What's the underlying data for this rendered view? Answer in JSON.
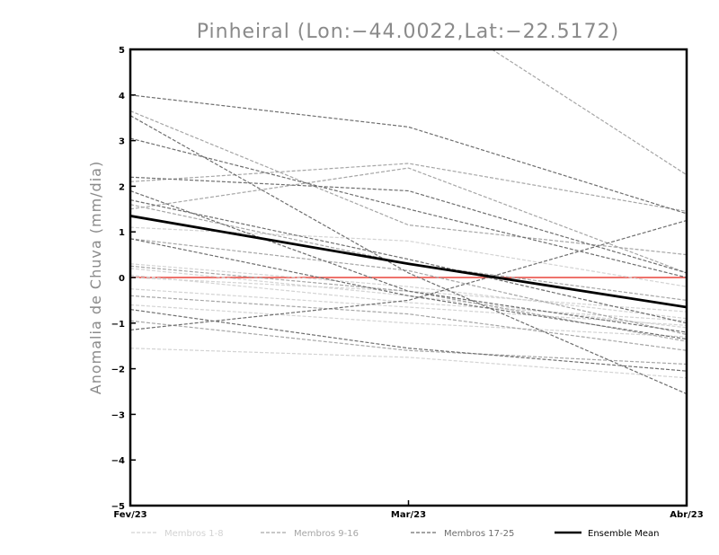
{
  "chart_data": {
    "type": "line",
    "title": "Pinheiral (Lon:−44.0022,Lat:−22.5172)",
    "ylabel": "Anomalia de Chuva (mm/dia)",
    "xlabel": "",
    "x": [
      "Fev/23",
      "Mar/23",
      "Abr/23"
    ],
    "ylim": [
      -5,
      5
    ],
    "yticks": [
      5,
      4,
      3,
      2,
      1,
      0,
      -1,
      -2,
      -3,
      -4,
      -5
    ],
    "ytick_labels": [
      "5",
      "4",
      "3",
      "2",
      "1",
      "0",
      "−1",
      "−2",
      "−3",
      "−4",
      "−5"
    ],
    "zero_line_color": "#e8453c",
    "legend_position": "bottom",
    "groups": [
      {
        "name": "Membros 1-8",
        "color": "#d3d3d3"
      },
      {
        "name": "Membros 9-16",
        "color": "#a6a6a6"
      },
      {
        "name": "Membros 17-25",
        "color": "#6e6e6e"
      }
    ],
    "ensemble_mean": {
      "name": "Ensemble Mean",
      "color": "#000000",
      "values": [
        1.35,
        0.3,
        -0.65
      ]
    },
    "series": [
      {
        "group": 0,
        "values": [
          0.3,
          -0.2,
          -0.9
        ]
      },
      {
        "group": 0,
        "values": [
          0.2,
          -0.4,
          -1.1
        ]
      },
      {
        "group": 0,
        "values": [
          -0.6,
          -1.0,
          -1.3
        ]
      },
      {
        "group": 0,
        "values": [
          -1.55,
          -1.75,
          -2.2
        ]
      },
      {
        "group": 0,
        "values": [
          1.1,
          0.8,
          -0.2
        ]
      },
      {
        "group": 0,
        "values": [
          0.05,
          -0.55,
          -0.95
        ]
      },
      {
        "group": 0,
        "values": [
          -0.25,
          -0.65,
          -1.05
        ]
      },
      {
        "group": 0,
        "values": [
          0.0,
          -0.3,
          -0.75
        ]
      },
      {
        "group": 1,
        "values": [
          2.1,
          2.5,
          1.45
        ]
      },
      {
        "group": 1,
        "values": [
          3.65,
          1.15,
          0.5
        ]
      },
      {
        "group": 1,
        "values": [
          1.5,
          2.4,
          0.1
        ]
      },
      {
        "group": 1,
        "values": [
          -0.95,
          -1.6,
          -1.9
        ]
      },
      {
        "group": 1,
        "values": [
          -0.4,
          -0.8,
          -1.6
        ]
      },
      {
        "group": 1,
        "values": [
          0.25,
          -0.3,
          -1.4
        ]
      },
      {
        "group": 1,
        "values": [
          1.6,
          0.3,
          -0.5
        ]
      },
      {
        "group": 1,
        "values": [
          0.85,
          0.15,
          -1.25
        ]
      },
      {
        "group": 2,
        "values": [
          4.0,
          3.3,
          1.4
        ]
      },
      {
        "group": 2,
        "values": [
          3.55,
          0.1,
          -2.55
        ]
      },
      {
        "group": 2,
        "values": [
          3.05,
          1.5,
          0.0
        ]
      },
      {
        "group": 2,
        "values": [
          2.2,
          1.9,
          0.1
        ]
      },
      {
        "group": 2,
        "values": [
          1.9,
          -0.3,
          -1.2
        ]
      },
      {
        "group": 2,
        "values": [
          1.7,
          0.4,
          -1.0
        ]
      },
      {
        "group": 2,
        "values": [
          0.85,
          -0.4,
          -1.35
        ]
      },
      {
        "group": 2,
        "values": [
          -1.15,
          -0.5,
          1.25
        ]
      },
      {
        "group": 2,
        "values": [
          -0.7,
          -1.55,
          -2.05
        ]
      }
    ],
    "extra_segment": {
      "group": 1,
      "from": [
        1.3,
        5.0
      ],
      "to": [
        2,
        2.25
      ]
    }
  }
}
